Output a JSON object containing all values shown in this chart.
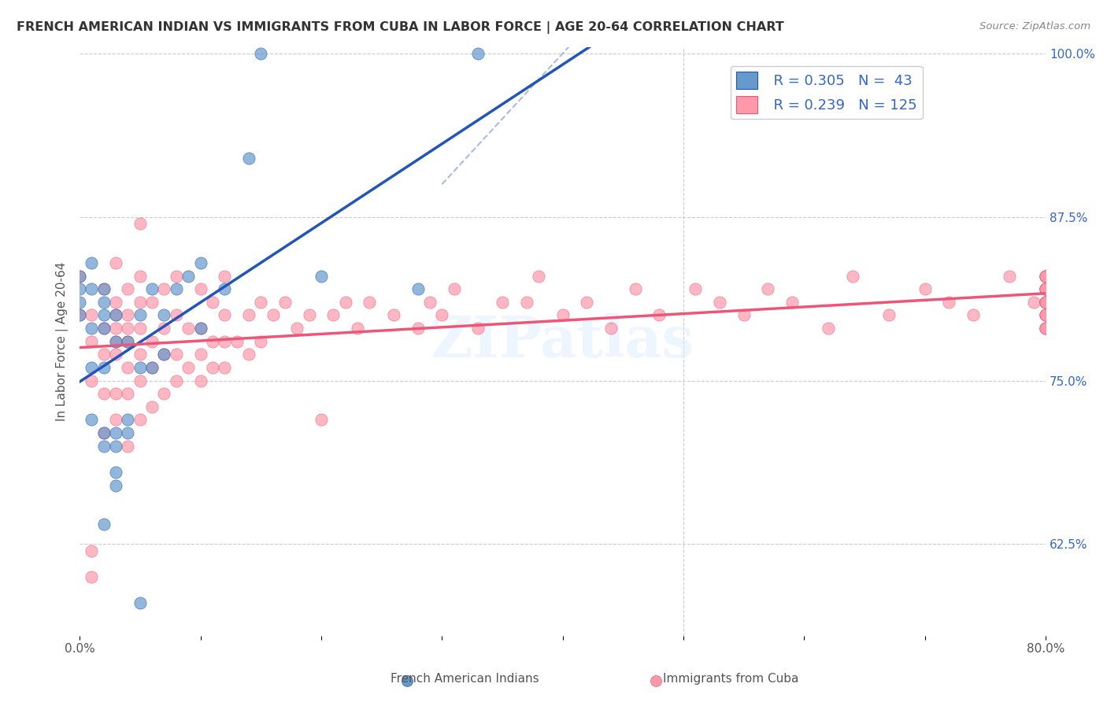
{
  "title": "FRENCH AMERICAN INDIAN VS IMMIGRANTS FROM CUBA IN LABOR FORCE | AGE 20-64 CORRELATION CHART",
  "source": "Source: ZipAtlas.com",
  "xlabel_bottom": "",
  "ylabel": "In Labor Force | Age 20-64",
  "x_min": 0.0,
  "x_max": 0.8,
  "y_min": 0.555,
  "y_max": 1.005,
  "x_ticks": [
    0.0,
    0.1,
    0.2,
    0.3,
    0.4,
    0.5,
    0.6,
    0.7,
    0.8
  ],
  "x_tick_labels": [
    "0.0%",
    "",
    "",
    "",
    "",
    "",
    "",
    "",
    "80.0%"
  ],
  "y_tick_labels_right": [
    "62.5%",
    "75.0%",
    "87.5%",
    "100.0%"
  ],
  "y_ticks_right": [
    0.625,
    0.75,
    0.875,
    1.0
  ],
  "legend_labels": [
    "French American Indians",
    "Immigrants from Cuba"
  ],
  "R_blue": 0.305,
  "N_blue": 43,
  "R_pink": 0.239,
  "N_pink": 125,
  "blue_color": "#6699CC",
  "pink_color": "#FF99AA",
  "trend_blue_color": "#2255BB",
  "trend_pink_color": "#EE5577",
  "diagonal_color": "#AABBDD",
  "watermark": "ZIPatlas",
  "blue_scatter_x": [
    0.0,
    0.0,
    0.0,
    0.0,
    0.01,
    0.01,
    0.01,
    0.01,
    0.01,
    0.02,
    0.02,
    0.02,
    0.02,
    0.02,
    0.02,
    0.02,
    0.02,
    0.03,
    0.03,
    0.03,
    0.03,
    0.03,
    0.03,
    0.04,
    0.04,
    0.04,
    0.05,
    0.05,
    0.05,
    0.06,
    0.06,
    0.07,
    0.07,
    0.08,
    0.09,
    0.1,
    0.1,
    0.12,
    0.14,
    0.15,
    0.2,
    0.28,
    0.33
  ],
  "blue_scatter_y": [
    0.8,
    0.81,
    0.82,
    0.83,
    0.72,
    0.76,
    0.79,
    0.82,
    0.84,
    0.64,
    0.7,
    0.71,
    0.76,
    0.79,
    0.8,
    0.81,
    0.82,
    0.67,
    0.68,
    0.7,
    0.71,
    0.78,
    0.8,
    0.71,
    0.72,
    0.78,
    0.58,
    0.76,
    0.8,
    0.76,
    0.82,
    0.77,
    0.8,
    0.82,
    0.83,
    0.79,
    0.84,
    0.82,
    0.92,
    1.0,
    0.83,
    0.82,
    1.0
  ],
  "pink_scatter_x": [
    0.0,
    0.0,
    0.01,
    0.01,
    0.01,
    0.01,
    0.01,
    0.02,
    0.02,
    0.02,
    0.02,
    0.02,
    0.03,
    0.03,
    0.03,
    0.03,
    0.03,
    0.03,
    0.03,
    0.03,
    0.04,
    0.04,
    0.04,
    0.04,
    0.04,
    0.04,
    0.04,
    0.05,
    0.05,
    0.05,
    0.05,
    0.05,
    0.05,
    0.05,
    0.06,
    0.06,
    0.06,
    0.06,
    0.07,
    0.07,
    0.07,
    0.07,
    0.08,
    0.08,
    0.08,
    0.08,
    0.09,
    0.09,
    0.1,
    0.1,
    0.1,
    0.1,
    0.11,
    0.11,
    0.11,
    0.12,
    0.12,
    0.12,
    0.12,
    0.13,
    0.14,
    0.14,
    0.15,
    0.15,
    0.16,
    0.17,
    0.18,
    0.19,
    0.2,
    0.21,
    0.22,
    0.23,
    0.24,
    0.26,
    0.28,
    0.29,
    0.3,
    0.31,
    0.33,
    0.35,
    0.37,
    0.38,
    0.4,
    0.42,
    0.44,
    0.46,
    0.48,
    0.51,
    0.53,
    0.55,
    0.57,
    0.59,
    0.62,
    0.64,
    0.67,
    0.7,
    0.72,
    0.74,
    0.77,
    0.79,
    0.8,
    0.8,
    0.8,
    0.8,
    0.8,
    0.8,
    0.8,
    0.8,
    0.8,
    0.8,
    0.8,
    0.8,
    0.8,
    0.8,
    0.8,
    0.8,
    0.8,
    0.8,
    0.8,
    0.8,
    0.8,
    0.8,
    0.8,
    0.8,
    0.8
  ],
  "pink_scatter_y": [
    0.8,
    0.83,
    0.6,
    0.62,
    0.75,
    0.78,
    0.8,
    0.71,
    0.74,
    0.77,
    0.79,
    0.82,
    0.72,
    0.74,
    0.77,
    0.78,
    0.79,
    0.8,
    0.81,
    0.84,
    0.7,
    0.74,
    0.76,
    0.78,
    0.79,
    0.8,
    0.82,
    0.72,
    0.75,
    0.77,
    0.79,
    0.81,
    0.83,
    0.87,
    0.73,
    0.76,
    0.78,
    0.81,
    0.74,
    0.77,
    0.79,
    0.82,
    0.75,
    0.77,
    0.8,
    0.83,
    0.76,
    0.79,
    0.75,
    0.77,
    0.79,
    0.82,
    0.76,
    0.78,
    0.81,
    0.76,
    0.78,
    0.8,
    0.83,
    0.78,
    0.77,
    0.8,
    0.78,
    0.81,
    0.8,
    0.81,
    0.79,
    0.8,
    0.72,
    0.8,
    0.81,
    0.79,
    0.81,
    0.8,
    0.79,
    0.81,
    0.8,
    0.82,
    0.79,
    0.81,
    0.81,
    0.83,
    0.8,
    0.81,
    0.79,
    0.82,
    0.8,
    0.82,
    0.81,
    0.8,
    0.82,
    0.81,
    0.79,
    0.83,
    0.8,
    0.82,
    0.81,
    0.8,
    0.83,
    0.81,
    0.8,
    0.82,
    0.81,
    0.79,
    0.83,
    0.81,
    0.82,
    0.8,
    0.83,
    0.81,
    0.82,
    0.79,
    0.8,
    0.83,
    0.81,
    0.82,
    0.81,
    0.79,
    0.83,
    0.82,
    0.81,
    0.8,
    0.79,
    0.83,
    0.82
  ]
}
